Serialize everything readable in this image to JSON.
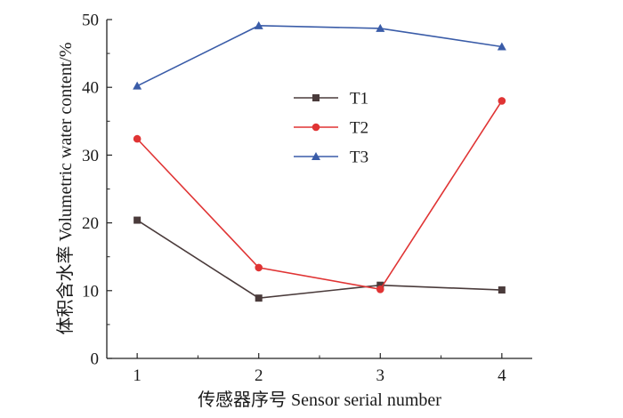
{
  "chart_data": {
    "type": "line",
    "title": "",
    "xlabel": "传感器序号 Sensor serial number",
    "ylabel": "体积含水率 Volumetric water content/%",
    "categories": [
      "1",
      "2",
      "3",
      "4"
    ],
    "x": [
      1,
      2,
      3,
      4
    ],
    "xlim": [
      0.75,
      4.25
    ],
    "ylim": [
      0,
      50
    ],
    "yticks": [
      0,
      10,
      20,
      30,
      40,
      50
    ],
    "grid": false,
    "legend": "upper-center",
    "series": [
      {
        "name": "T1",
        "color": "#4a3b3b",
        "marker": "square",
        "values": [
          20.4,
          8.9,
          10.8,
          10.1
        ]
      },
      {
        "name": "T2",
        "color": "#e03434",
        "marker": "circle",
        "values": [
          32.4,
          13.4,
          10.2,
          38.0
        ]
      },
      {
        "name": "T3",
        "color": "#3a5ca8",
        "marker": "triangle",
        "values": [
          40.2,
          49.1,
          48.7,
          46.0
        ]
      }
    ]
  }
}
